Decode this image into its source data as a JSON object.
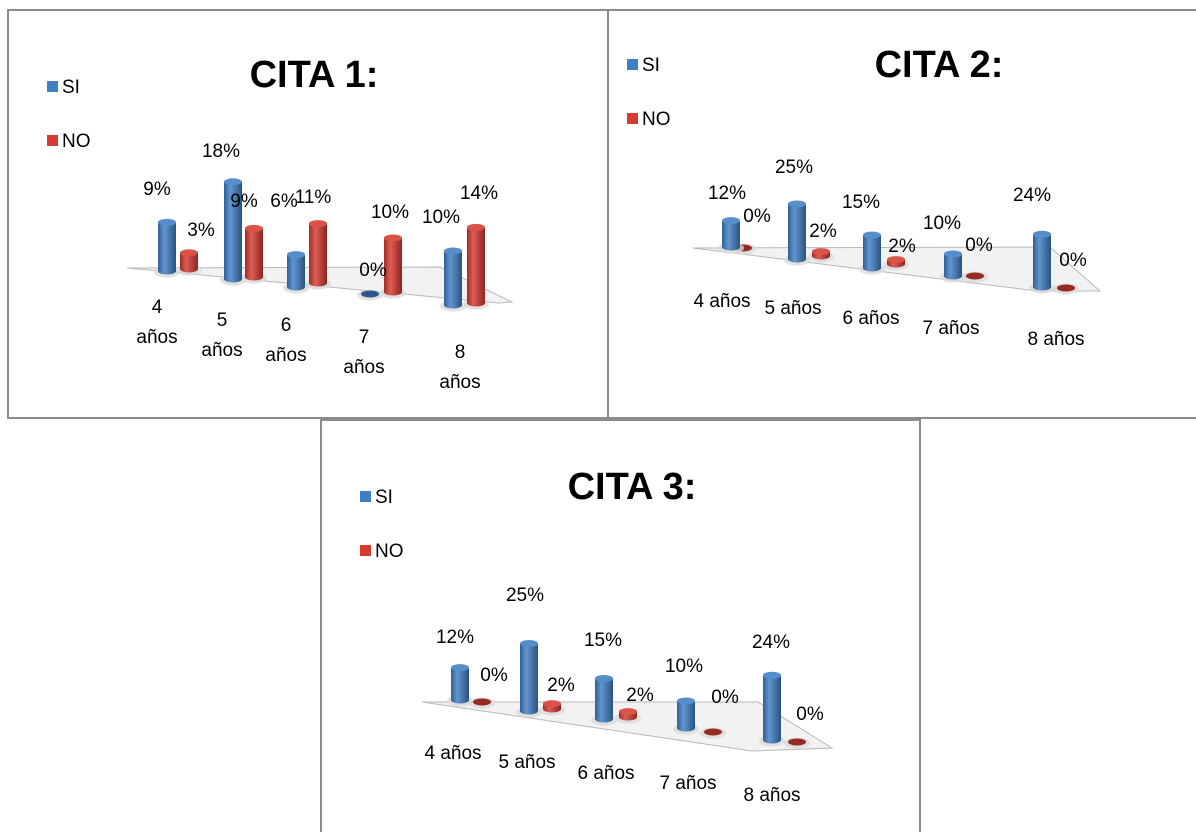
{
  "colors": {
    "si": "#3f7fc4",
    "no": "#d63a30",
    "floor": "#f2f2f2",
    "floor_edge": "#b9b9b9"
  },
  "chart_data": [
    {
      "type": "bar",
      "title": "CITA 1:",
      "categories": [
        "4 años",
        "5 años",
        "6 años",
        "7 años",
        "8 años"
      ],
      "series": [
        {
          "name": "SI",
          "values": [
            9,
            18,
            6,
            0,
            10
          ],
          "labels": [
            "9%",
            "18%",
            "6%",
            "0%",
            "10%"
          ]
        },
        {
          "name": "NO",
          "values": [
            3,
            9,
            11,
            10,
            14
          ],
          "labels": [
            "3%",
            "9%",
            "11%",
            "10%",
            "14%"
          ]
        }
      ],
      "legend_position": "top-left",
      "grid": false
    },
    {
      "type": "bar",
      "title": "CITA 2:",
      "categories": [
        "4 años",
        "5 años",
        "6 años",
        "7 años",
        "8 años"
      ],
      "series": [
        {
          "name": "SI",
          "values": [
            12,
            25,
            15,
            10,
            24
          ],
          "labels": [
            "12%",
            "25%",
            "15%",
            "10%",
            "24%"
          ]
        },
        {
          "name": "NO",
          "values": [
            0,
            2,
            2,
            0,
            0
          ],
          "labels": [
            "0%",
            "2%",
            "2%",
            "0%",
            "0%"
          ]
        }
      ],
      "legend_position": "top-left",
      "grid": false
    },
    {
      "type": "bar",
      "title": "CITA 3:",
      "categories": [
        "4 años",
        "5 años",
        "6 años",
        "7 años",
        "8 años"
      ],
      "series": [
        {
          "name": "SI",
          "values": [
            12,
            25,
            15,
            10,
            24
          ],
          "labels": [
            "12%",
            "25%",
            "15%",
            "10%",
            "24%"
          ]
        },
        {
          "name": "NO",
          "values": [
            0,
            2,
            2,
            0,
            0
          ],
          "labels": [
            "0%",
            "2%",
            "2%",
            "0%",
            "0%"
          ]
        }
      ],
      "legend_position": "top-left",
      "grid": false
    }
  ]
}
